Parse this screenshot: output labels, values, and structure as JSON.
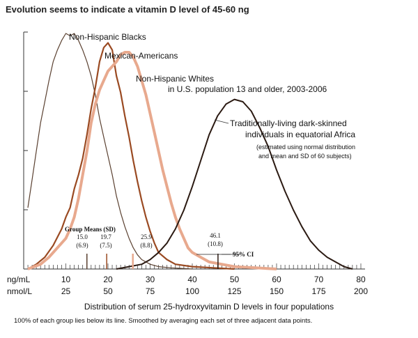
{
  "page_title": "Evolution seems to indicate a vitamin D level of 45-60 ng",
  "chart_data": {
    "type": "line",
    "title": "",
    "xlabel": "Distribution of serum 25-hydroxyvitamin D levels in four populations",
    "footnote": "100% of each group lies below its line. Smoothed by averaging each set of three adjacent data points.",
    "x_unit_label_primary": "ng/mL",
    "x_unit_label_secondary": "nmol/L",
    "xlim": [
      0,
      80
    ],
    "x_ticks_ng": [
      "10",
      "20",
      "30",
      "40",
      "50",
      "60",
      "70",
      "80"
    ],
    "x_ticks_nmol": [
      "25",
      "50",
      "75",
      "100",
      "125",
      "150",
      "175",
      "200"
    ],
    "ylim": [
      0,
      1
    ],
    "grid": false,
    "series": [
      {
        "name": "Non-Hispanic Blacks",
        "color": "#5a4030",
        "width": 1.2,
        "points": [
          [
            1,
            0.26
          ],
          [
            2,
            0.38
          ],
          [
            3,
            0.5
          ],
          [
            4,
            0.62
          ],
          [
            5,
            0.71
          ],
          [
            6,
            0.8
          ],
          [
            7,
            0.88
          ],
          [
            8,
            0.93
          ],
          [
            9,
            0.97
          ],
          [
            10,
            1.0
          ],
          [
            11,
            0.99
          ],
          [
            12,
            1.0
          ],
          [
            13,
            0.97
          ],
          [
            14,
            0.93
          ],
          [
            15,
            0.88
          ],
          [
            16,
            0.82
          ],
          [
            17,
            0.74
          ],
          [
            18,
            0.64
          ],
          [
            19,
            0.56
          ],
          [
            20,
            0.48
          ],
          [
            21,
            0.4
          ],
          [
            22,
            0.31
          ],
          [
            23,
            0.24
          ],
          [
            24,
            0.18
          ],
          [
            25,
            0.13
          ],
          [
            26,
            0.09
          ],
          [
            27,
            0.06
          ],
          [
            28,
            0.04
          ],
          [
            30,
            0.02
          ],
          [
            32,
            0.01
          ],
          [
            35,
            0.005
          ],
          [
            40,
            0.0
          ]
        ]
      },
      {
        "name": "Mexican-Americans",
        "color": "#9a4a22",
        "width": 2.2,
        "points": [
          [
            1,
            0.0
          ],
          [
            3,
            0.02
          ],
          [
            5,
            0.05
          ],
          [
            7,
            0.1
          ],
          [
            9,
            0.17
          ],
          [
            10,
            0.22
          ],
          [
            11,
            0.26
          ],
          [
            12,
            0.34
          ],
          [
            13,
            0.4
          ],
          [
            14,
            0.47
          ],
          [
            15,
            0.57
          ],
          [
            16,
            0.68
          ],
          [
            17,
            0.77
          ],
          [
            18,
            0.88
          ],
          [
            19,
            0.94
          ],
          [
            20,
            0.96
          ],
          [
            21,
            0.93
          ],
          [
            22,
            0.82
          ],
          [
            23,
            0.75
          ],
          [
            24,
            0.65
          ],
          [
            25,
            0.56
          ],
          [
            26,
            0.46
          ],
          [
            27,
            0.37
          ],
          [
            28,
            0.29
          ],
          [
            29,
            0.22
          ],
          [
            30,
            0.16
          ],
          [
            31,
            0.11
          ],
          [
            32,
            0.07
          ],
          [
            34,
            0.04
          ],
          [
            36,
            0.02
          ],
          [
            40,
            0.01
          ],
          [
            45,
            0.005
          ],
          [
            50,
            0.0
          ]
        ]
      },
      {
        "name": "Non-Hispanic Whites",
        "subtitle": "in U.S. population 13 and older, 2003-2006",
        "color": "#e8a98e",
        "width": 4,
        "points": [
          [
            1,
            0.0
          ],
          [
            4,
            0.02
          ],
          [
            6,
            0.05
          ],
          [
            8,
            0.09
          ],
          [
            10,
            0.13
          ],
          [
            11,
            0.17
          ],
          [
            12,
            0.22
          ],
          [
            13,
            0.3
          ],
          [
            14,
            0.4
          ],
          [
            15,
            0.5
          ],
          [
            16,
            0.62
          ],
          [
            17,
            0.7
          ],
          [
            18,
            0.76
          ],
          [
            19,
            0.8
          ],
          [
            20,
            0.84
          ],
          [
            21,
            0.86
          ],
          [
            22,
            0.88
          ],
          [
            23,
            0.91
          ],
          [
            24,
            0.92
          ],
          [
            25,
            0.92
          ],
          [
            26,
            0.9
          ],
          [
            27,
            0.86
          ],
          [
            28,
            0.8
          ],
          [
            29,
            0.74
          ],
          [
            30,
            0.66
          ],
          [
            31,
            0.58
          ],
          [
            32,
            0.5
          ],
          [
            33,
            0.42
          ],
          [
            34,
            0.35
          ],
          [
            35,
            0.28
          ],
          [
            36,
            0.22
          ],
          [
            37,
            0.17
          ],
          [
            38,
            0.13
          ],
          [
            39,
            0.09
          ],
          [
            40,
            0.07
          ],
          [
            42,
            0.05
          ],
          [
            44,
            0.03
          ],
          [
            47,
            0.02
          ],
          [
            50,
            0.01
          ],
          [
            55,
            0.005
          ],
          [
            60,
            0.0
          ]
        ]
      },
      {
        "name": "Traditionally-living dark-skinned individuals in equatorial Africa",
        "subtitle": "(estimated using normal distribution and mean and SD of 60 subjects)",
        "color": "#2b1a12",
        "width": 2,
        "points": [
          [
            22,
            0.0
          ],
          [
            25,
            0.01
          ],
          [
            28,
            0.02
          ],
          [
            30,
            0.04
          ],
          [
            32,
            0.07
          ],
          [
            34,
            0.11
          ],
          [
            36,
            0.17
          ],
          [
            38,
            0.25
          ],
          [
            40,
            0.35
          ],
          [
            42,
            0.46
          ],
          [
            44,
            0.57
          ],
          [
            46,
            0.65
          ],
          [
            48,
            0.7
          ],
          [
            50,
            0.72
          ],
          [
            52,
            0.71
          ],
          [
            54,
            0.67
          ],
          [
            56,
            0.6
          ],
          [
            58,
            0.52
          ],
          [
            60,
            0.42
          ],
          [
            62,
            0.33
          ],
          [
            64,
            0.25
          ],
          [
            66,
            0.18
          ],
          [
            68,
            0.12
          ],
          [
            70,
            0.08
          ],
          [
            72,
            0.05
          ],
          [
            74,
            0.03
          ],
          [
            76,
            0.01
          ],
          [
            78,
            0.0
          ]
        ]
      }
    ],
    "annotations": {
      "group_means_title": "Group Means (SD)",
      "means": [
        {
          "mean": 15.0,
          "label": "15.0",
          "sd": "(6.9)"
        },
        {
          "mean": 19.7,
          "label": "19.7",
          "sd": "(7.5)"
        },
        {
          "mean": 25.9,
          "label": "25.9",
          "sd": "(8.8)"
        },
        {
          "mean": 46.1,
          "label": "46.1",
          "sd": "(10.8)"
        }
      ],
      "ci_label": "95% CI"
    }
  }
}
